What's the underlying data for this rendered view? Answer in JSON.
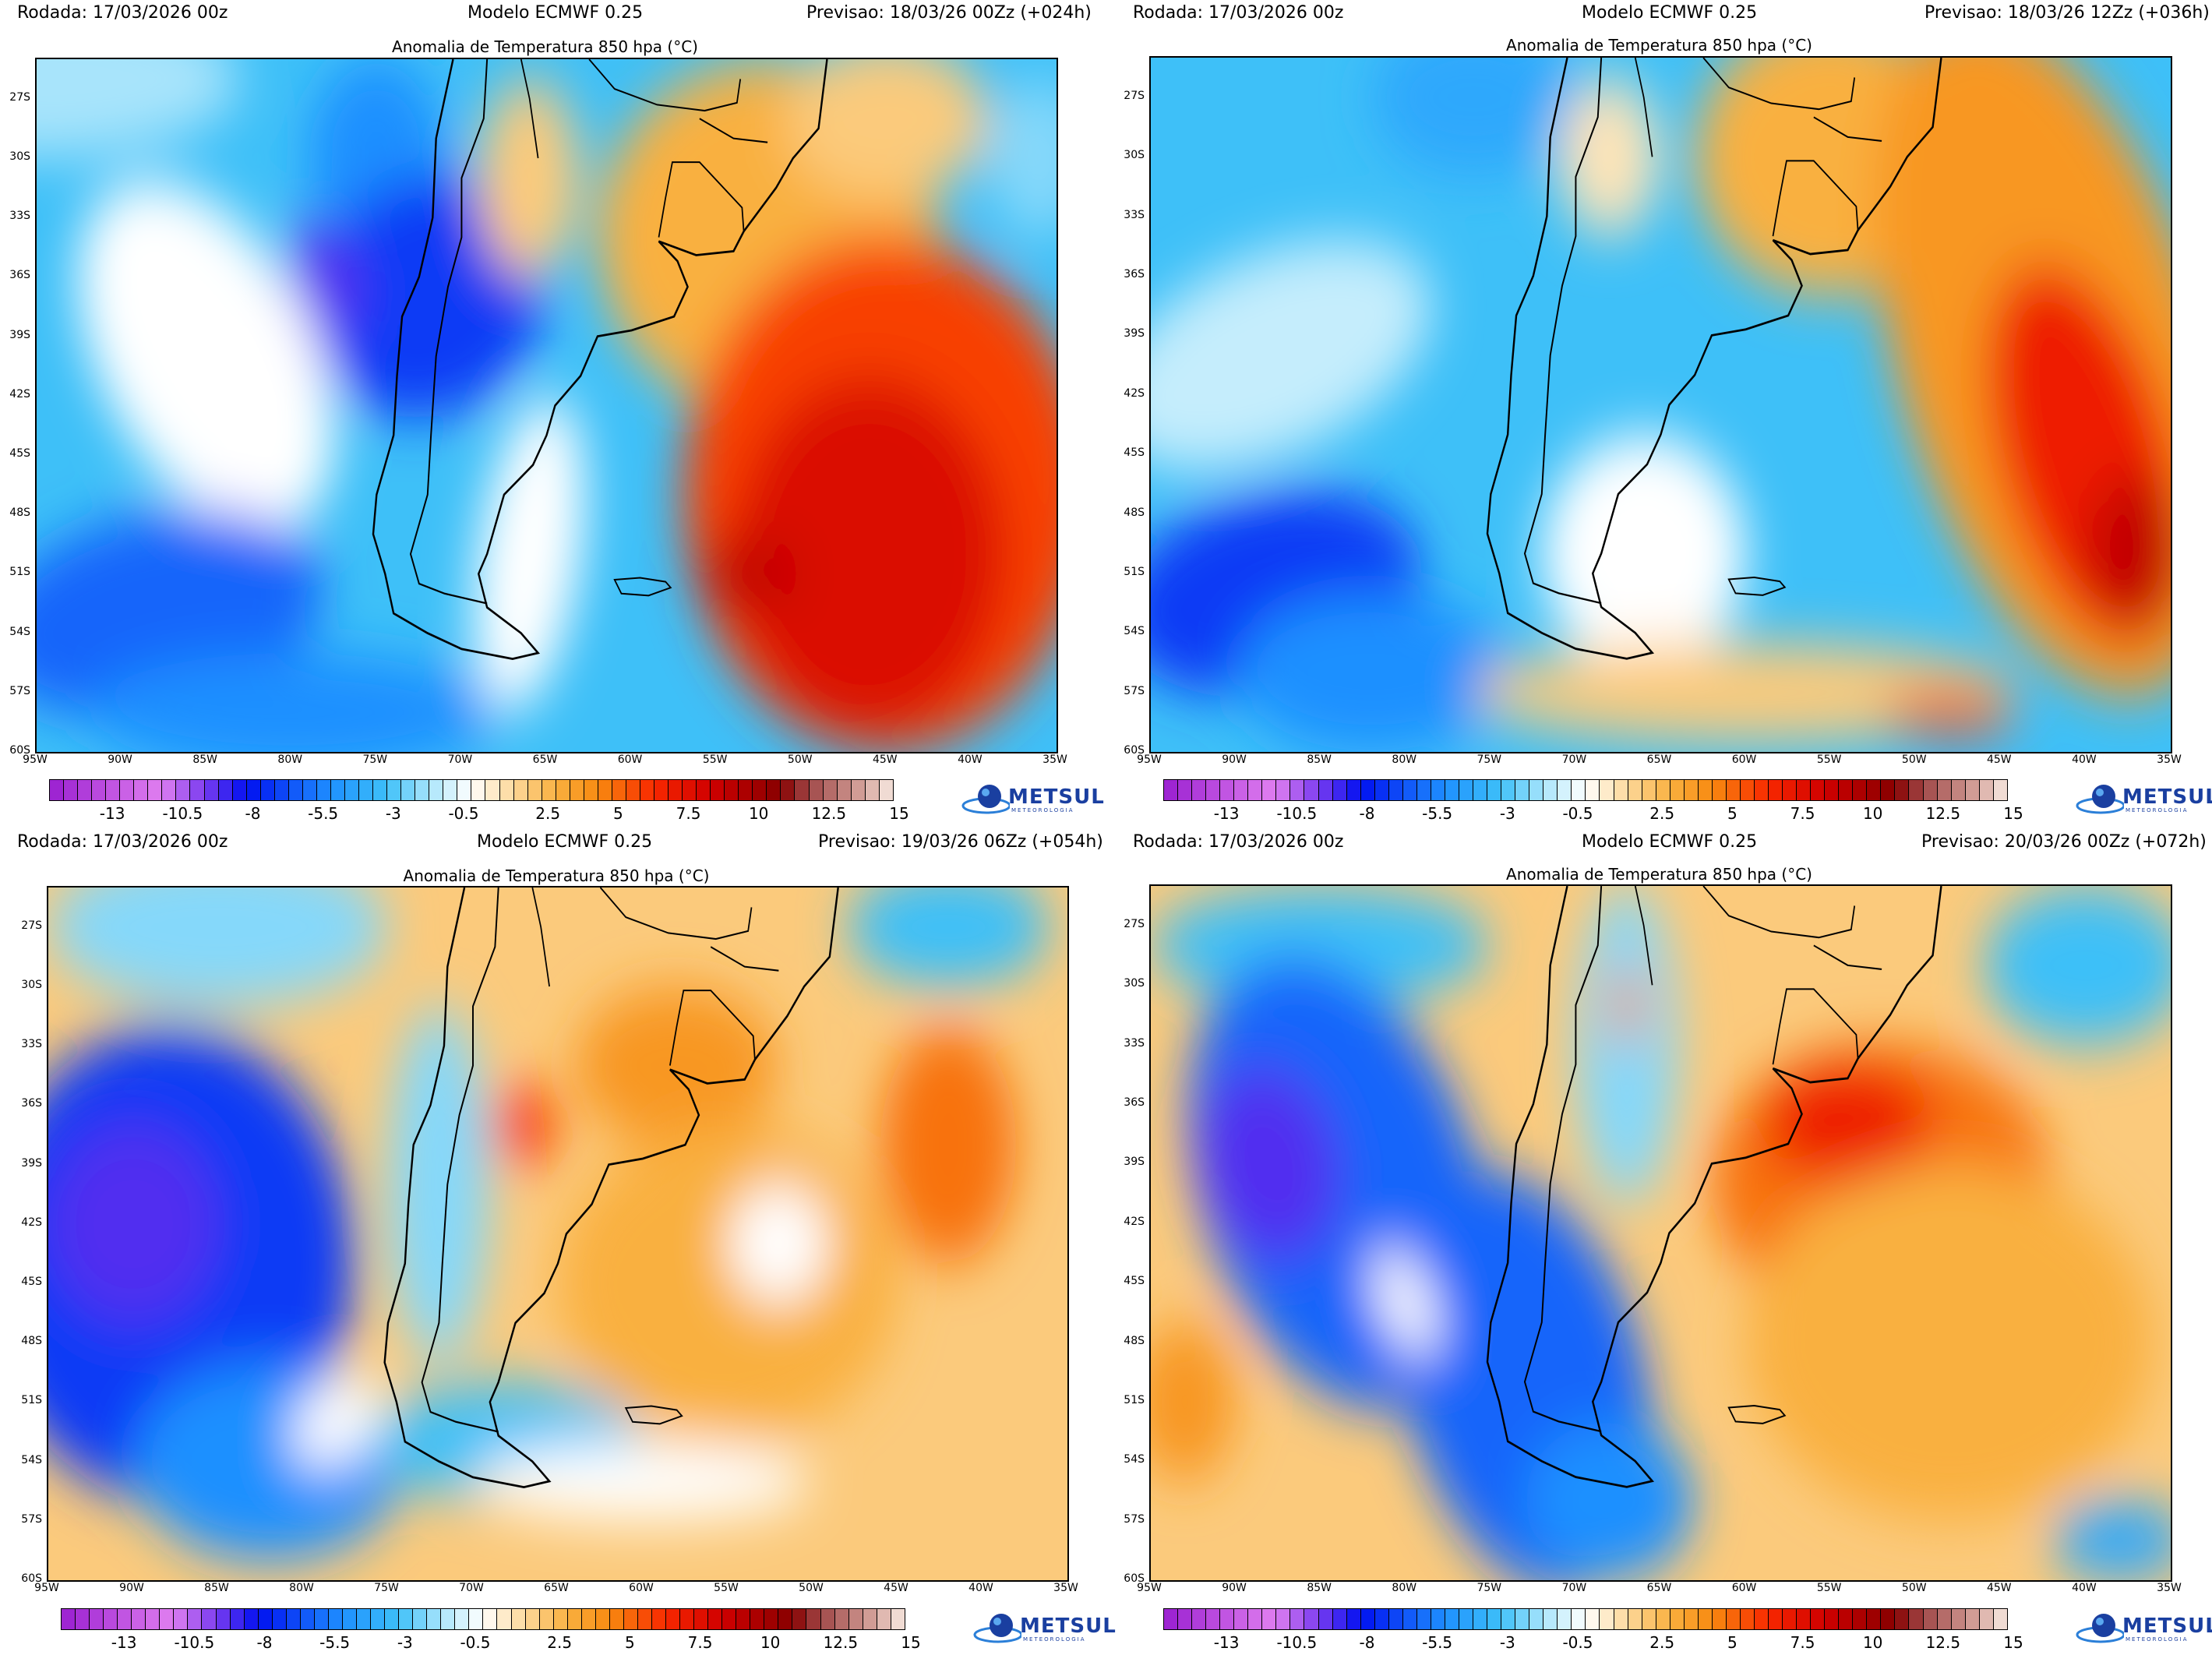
{
  "panels": [
    {
      "run": "Rodada: 17/03/2026 00z",
      "model": "Modelo ECMWF 0.25",
      "forecast": "Previsao: 18/03/26 00Zz (+024h)",
      "title": "Anomalia de Temperatura 850 hpa (°C)"
    },
    {
      "run": "Rodada: 17/03/2026 00z",
      "model": "Modelo ECMWF 0.25",
      "forecast": "Previsao: 18/03/26 12Zz (+036h)",
      "title": "Anomalia de Temperatura 850 hpa (°C)"
    },
    {
      "run": "Rodada: 17/03/2026 00z",
      "model": "Modelo ECMWF 0.25",
      "forecast": "Previsao: 19/03/26 06Zz (+054h)",
      "title": "Anomalia de Temperatura 850 hpa (°C)"
    },
    {
      "run": "Rodada: 17/03/2026 00z",
      "model": "Modelo ECMWF 0.25",
      "forecast": "Previsao: 20/03/26 00Zz (+072h)",
      "title": "Anomalia de Temperatura 850 hpa (°C)"
    }
  ],
  "map": {
    "lat_labels": [
      "27S",
      "30S",
      "33S",
      "36S",
      "39S",
      "42S",
      "45S",
      "48S",
      "51S",
      "54S",
      "57S",
      "60S"
    ],
    "lon_labels": [
      "95W",
      "90W",
      "85W",
      "80W",
      "75W",
      "70W",
      "65W",
      "60W",
      "55W",
      "50W",
      "45W",
      "40W",
      "35W"
    ],
    "lon_range": [
      -95,
      -35
    ],
    "lat_range": [
      -25,
      -60
    ]
  },
  "colorbar": {
    "tick_labels": [
      "-13",
      "-10.5",
      "-8",
      "-5.5",
      "-3",
      "-0.5",
      "2.5",
      "5",
      "7.5",
      "10",
      "12.5",
      "15"
    ],
    "range": [
      -15,
      15
    ],
    "color_stops": [
      {
        "v": -15,
        "c": "#9a1fd0"
      },
      {
        "v": -11,
        "c": "#e07ff0"
      },
      {
        "v": -9.5,
        "c": "#7a3cf0"
      },
      {
        "v": -8,
        "c": "#0010f0"
      },
      {
        "v": -5,
        "c": "#1e90ff"
      },
      {
        "v": -3,
        "c": "#3ec0f8"
      },
      {
        "v": -1.5,
        "c": "#a8e4fb"
      },
      {
        "v": 0,
        "c": "#ffffff"
      },
      {
        "v": 1,
        "c": "#fde4b8"
      },
      {
        "v": 3,
        "c": "#f9b040"
      },
      {
        "v": 4.5,
        "c": "#f88a10"
      },
      {
        "v": 6.5,
        "c": "#f82800"
      },
      {
        "v": 8.5,
        "c": "#d00000"
      },
      {
        "v": 11,
        "c": "#880000"
      },
      {
        "v": 12,
        "c": "#a04848"
      },
      {
        "v": 14,
        "c": "#d8a8a0"
      },
      {
        "v": 15,
        "c": "#f8ece4"
      }
    ]
  },
  "logo": {
    "text": "METSUL",
    "subtitle": "METEOROLOGIA"
  }
}
